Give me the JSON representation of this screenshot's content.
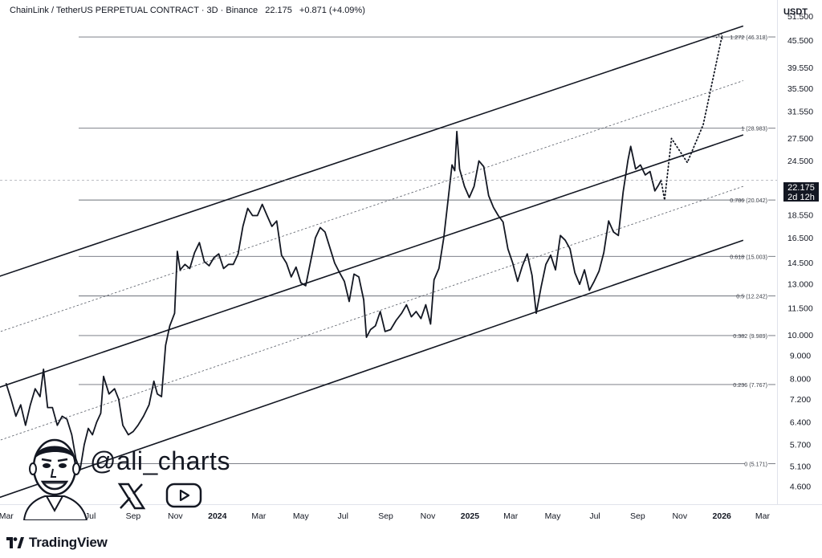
{
  "header": {
    "symbol": "ChainLink / TetherUS PERPETUAL CONTRACT · 3D · Binance",
    "price": "22.175",
    "change": "+0.871 (+4.09%)"
  },
  "price_axis_unit": "USDT",
  "current_price_tag": {
    "price": "22.175",
    "countdown": "2d 12h"
  },
  "branding": {
    "tradingview": "TradingView",
    "handle": "@ali_charts"
  },
  "icons": {
    "tv": "tradingview-logo-icon",
    "x": "x-logo-icon",
    "youtube": "youtube-play-icon",
    "avatar": "avatar-caricature-icon"
  },
  "chart_data": {
    "type": "line",
    "scale": "log",
    "ylim": [
      4.2,
      56
    ],
    "y_ticks": [
      "51.500",
      "45.500",
      "39.550",
      "35.500",
      "31.550",
      "27.500",
      "24.500",
      "22.175",
      "18.550",
      "16.500",
      "14.500",
      "13.000",
      "11.500",
      "10.000",
      "9.000",
      "8.000",
      "7.200",
      "6.400",
      "5.700",
      "5.100",
      "4.600"
    ],
    "y_tick_values": [
      51.5,
      45.5,
      39.55,
      35.5,
      31.55,
      27.5,
      24.5,
      22.175,
      18.55,
      16.5,
      14.5,
      13.0,
      11.5,
      10.0,
      9.0,
      8.0,
      7.2,
      6.4,
      5.7,
      5.1,
      4.6
    ],
    "x_ticks": [
      "Mar",
      "May",
      "Jul",
      "Sep",
      "Nov",
      "2024",
      "Mar",
      "May",
      "Jul",
      "Sep",
      "Nov",
      "2025",
      "Mar",
      "May",
      "Jul",
      "Sep",
      "Nov",
      "2026",
      "Mar"
    ],
    "x_tick_bold": [
      false,
      false,
      false,
      false,
      false,
      true,
      false,
      false,
      false,
      false,
      false,
      true,
      false,
      false,
      false,
      false,
      false,
      true,
      false
    ],
    "x_tick_dates": [
      "2023-03-01",
      "2023-05-01",
      "2023-07-01",
      "2023-09-01",
      "2023-11-01",
      "2024-01-01",
      "2024-03-01",
      "2024-05-01",
      "2024-07-01",
      "2024-09-01",
      "2024-11-01",
      "2025-01-01",
      "2025-03-01",
      "2025-05-01",
      "2025-07-01",
      "2025-09-01",
      "2025-11-01",
      "2026-01-01",
      "2026-03-01"
    ],
    "fib_levels": [
      {
        "label": "1.272 (46.318)",
        "value": 46.318
      },
      {
        "label": "1 (28.983)",
        "value": 28.983
      },
      {
        "label": "0.786 (20.042)",
        "value": 20.042
      },
      {
        "label": "0.618 (15.003)",
        "value": 15.003
      },
      {
        "label": "0.5 (12.242)",
        "value": 12.242
      },
      {
        "label": "0.382 (9.989)",
        "value": 9.989
      },
      {
        "label": "0.236 (7.767)",
        "value": 7.767
      },
      {
        "label": "0 (5.171)",
        "value": 5.171
      }
    ],
    "channel": {
      "start_date": "2023-03-01",
      "end_date": "2026-02-01",
      "upper": [
        13.7,
        49.0
      ],
      "mid_upper_dotted": [
        10.3,
        37.0
      ],
      "middle": [
        7.75,
        28.0
      ],
      "mid_lower_dotted": [
        5.9,
        21.5
      ],
      "lower": [
        4.4,
        16.3
      ]
    },
    "series": [
      {
        "values": [
          [
            "2023-03-01",
            7.8
          ],
          [
            "2023-03-08",
            7.2
          ],
          [
            "2023-03-15",
            6.6
          ],
          [
            "2023-03-22",
            7.0
          ],
          [
            "2023-03-29",
            6.3
          ],
          [
            "2023-04-05",
            7.0
          ],
          [
            "2023-04-12",
            7.6
          ],
          [
            "2023-04-19",
            7.3
          ],
          [
            "2023-04-24",
            8.4
          ],
          [
            "2023-04-30",
            6.9
          ],
          [
            "2023-05-07",
            6.9
          ],
          [
            "2023-05-14",
            6.3
          ],
          [
            "2023-05-21",
            6.6
          ],
          [
            "2023-05-28",
            6.5
          ],
          [
            "2023-06-04",
            6.0
          ],
          [
            "2023-06-10",
            5.3
          ],
          [
            "2023-06-16",
            5.0
          ],
          [
            "2023-06-22",
            5.7
          ],
          [
            "2023-06-28",
            6.2
          ],
          [
            "2023-07-04",
            6.0
          ],
          [
            "2023-07-10",
            6.4
          ],
          [
            "2023-07-16",
            6.7
          ],
          [
            "2023-07-20",
            8.1
          ],
          [
            "2023-07-28",
            7.4
          ],
          [
            "2023-08-05",
            7.6
          ],
          [
            "2023-08-11",
            7.2
          ],
          [
            "2023-08-17",
            6.3
          ],
          [
            "2023-08-25",
            6.0
          ],
          [
            "2023-09-01",
            6.1
          ],
          [
            "2023-09-08",
            6.3
          ],
          [
            "2023-09-16",
            6.6
          ],
          [
            "2023-09-24",
            7.0
          ],
          [
            "2023-10-01",
            7.9
          ],
          [
            "2023-10-06",
            7.4
          ],
          [
            "2023-10-12",
            7.3
          ],
          [
            "2023-10-18",
            9.5
          ],
          [
            "2023-10-24",
            10.5
          ],
          [
            "2023-10-31",
            11.2
          ],
          [
            "2023-11-04",
            15.4
          ],
          [
            "2023-11-08",
            14.0
          ],
          [
            "2023-11-15",
            14.4
          ],
          [
            "2023-11-22",
            14.1
          ],
          [
            "2023-11-29",
            15.3
          ],
          [
            "2023-12-06",
            16.1
          ],
          [
            "2023-12-13",
            14.6
          ],
          [
            "2023-12-20",
            14.3
          ],
          [
            "2023-12-27",
            14.9
          ],
          [
            "2024-01-03",
            15.2
          ],
          [
            "2024-01-10",
            14.1
          ],
          [
            "2024-01-17",
            14.4
          ],
          [
            "2024-01-24",
            14.4
          ],
          [
            "2024-01-31",
            15.2
          ],
          [
            "2024-02-07",
            17.5
          ],
          [
            "2024-02-14",
            19.2
          ],
          [
            "2024-02-21",
            18.5
          ],
          [
            "2024-02-28",
            18.5
          ],
          [
            "2024-03-06",
            19.6
          ],
          [
            "2024-03-13",
            18.5
          ],
          [
            "2024-03-20",
            17.5
          ],
          [
            "2024-03-27",
            18.0
          ],
          [
            "2024-04-03",
            15.1
          ],
          [
            "2024-04-10",
            14.5
          ],
          [
            "2024-04-17",
            13.5
          ],
          [
            "2024-04-24",
            14.2
          ],
          [
            "2024-05-01",
            13.1
          ],
          [
            "2024-05-08",
            12.9
          ],
          [
            "2024-05-15",
            14.6
          ],
          [
            "2024-05-22",
            16.5
          ],
          [
            "2024-05-29",
            17.4
          ],
          [
            "2024-06-05",
            17.0
          ],
          [
            "2024-06-12",
            15.7
          ],
          [
            "2024-06-19",
            14.5
          ],
          [
            "2024-06-26",
            13.8
          ],
          [
            "2024-07-03",
            13.2
          ],
          [
            "2024-07-10",
            11.9
          ],
          [
            "2024-07-17",
            13.7
          ],
          [
            "2024-07-24",
            13.5
          ],
          [
            "2024-07-31",
            12.0
          ],
          [
            "2024-08-04",
            9.9
          ],
          [
            "2024-08-10",
            10.3
          ],
          [
            "2024-08-17",
            10.5
          ],
          [
            "2024-08-24",
            11.3
          ],
          [
            "2024-08-31",
            10.2
          ],
          [
            "2024-09-08",
            10.3
          ],
          [
            "2024-09-16",
            10.8
          ],
          [
            "2024-09-24",
            11.2
          ],
          [
            "2024-10-01",
            11.7
          ],
          [
            "2024-10-08",
            11.0
          ],
          [
            "2024-10-15",
            11.3
          ],
          [
            "2024-10-22",
            10.9
          ],
          [
            "2024-10-29",
            11.7
          ],
          [
            "2024-11-05",
            10.6
          ],
          [
            "2024-11-10",
            13.3
          ],
          [
            "2024-11-17",
            14.1
          ],
          [
            "2024-11-24",
            16.5
          ],
          [
            "2024-12-01",
            20.5
          ],
          [
            "2024-12-06",
            24.0
          ],
          [
            "2024-12-10",
            23.3
          ],
          [
            "2024-12-13",
            28.5
          ],
          [
            "2024-12-17",
            23.5
          ],
          [
            "2024-12-24",
            21.5
          ],
          [
            "2024-12-31",
            20.3
          ],
          [
            "2025-01-07",
            21.5
          ],
          [
            "2025-01-14",
            24.5
          ],
          [
            "2025-01-21",
            23.8
          ],
          [
            "2025-01-28",
            20.5
          ],
          [
            "2025-02-04",
            19.3
          ],
          [
            "2025-02-11",
            18.5
          ],
          [
            "2025-02-18",
            17.9
          ],
          [
            "2025-02-25",
            15.6
          ],
          [
            "2025-03-04",
            14.5
          ],
          [
            "2025-03-11",
            13.2
          ],
          [
            "2025-03-18",
            14.3
          ],
          [
            "2025-03-25",
            15.2
          ],
          [
            "2025-04-01",
            13.6
          ],
          [
            "2025-04-07",
            11.2
          ],
          [
            "2025-04-14",
            12.8
          ],
          [
            "2025-04-21",
            14.4
          ],
          [
            "2025-04-28",
            15.1
          ],
          [
            "2025-05-05",
            14.0
          ],
          [
            "2025-05-12",
            16.7
          ],
          [
            "2025-05-19",
            16.3
          ],
          [
            "2025-05-26",
            15.6
          ],
          [
            "2025-06-02",
            13.8
          ],
          [
            "2025-06-09",
            13.0
          ],
          [
            "2025-06-16",
            14.0
          ],
          [
            "2025-06-23",
            12.6
          ],
          [
            "2025-06-30",
            13.2
          ],
          [
            "2025-07-07",
            13.9
          ],
          [
            "2025-07-14",
            15.3
          ],
          [
            "2025-07-21",
            18.0
          ],
          [
            "2025-07-28",
            17.0
          ],
          [
            "2025-08-04",
            16.7
          ],
          [
            "2025-08-11",
            20.9
          ],
          [
            "2025-08-18",
            24.6
          ],
          [
            "2025-08-22",
            26.4
          ],
          [
            "2025-08-29",
            23.5
          ],
          [
            "2025-09-05",
            24.0
          ],
          [
            "2025-09-12",
            22.8
          ],
          [
            "2025-09-19",
            23.2
          ],
          [
            "2025-09-26",
            21.0
          ],
          [
            "2025-10-01",
            21.6
          ],
          [
            "2025-10-05",
            22.175
          ]
        ]
      },
      {
        "name": "projection",
        "values": [
          [
            "2025-10-05",
            22.175
          ],
          [
            "2025-10-10",
            20.042
          ],
          [
            "2025-10-20",
            27.5
          ],
          [
            "2025-11-12",
            24.3
          ],
          [
            "2025-12-05",
            29.5
          ],
          [
            "2026-01-01",
            46.318
          ]
        ]
      }
    ]
  }
}
